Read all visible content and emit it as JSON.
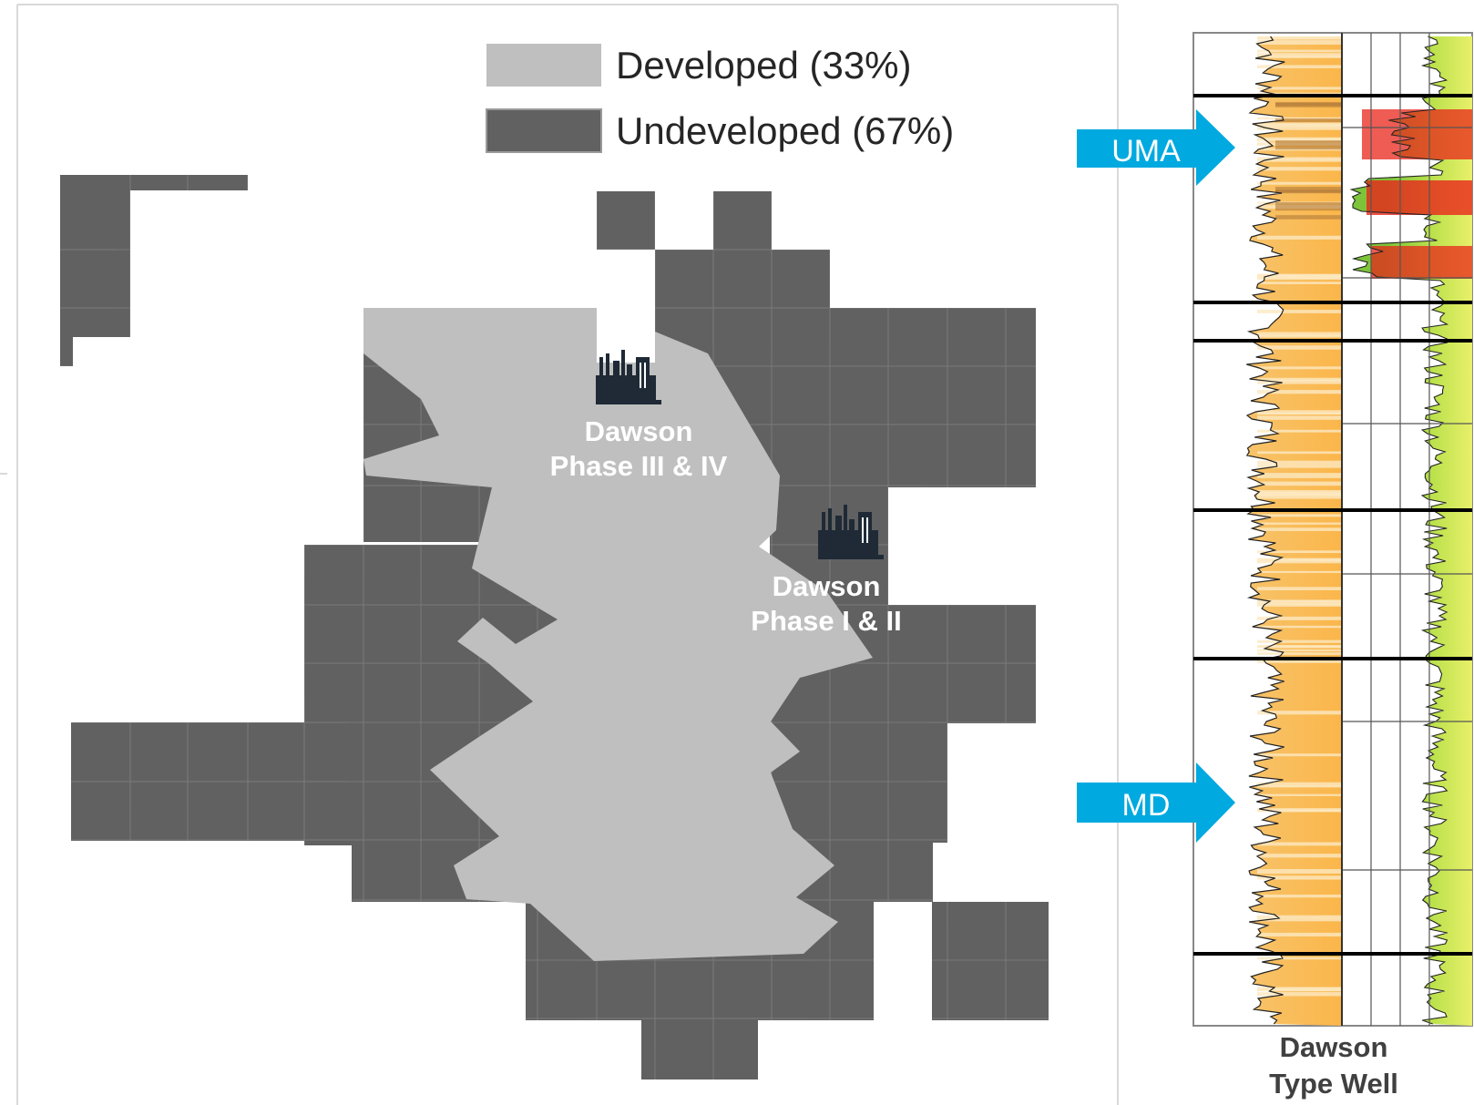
{
  "legend": {
    "developed": {
      "label": "Developed (33%)",
      "color": "#bfbfbf"
    },
    "undeveloped": {
      "label": "Undeveloped (67%)",
      "color": "#616161"
    }
  },
  "plants": [
    {
      "icon": "refinery-icon",
      "line1": "Dawson",
      "line2": "Phase III & IV"
    },
    {
      "icon": "refinery-icon",
      "line1": "Dawson",
      "line2": "Phase I & II"
    }
  ],
  "type_well": {
    "caption_line1": "Dawson",
    "caption_line2": "Type Well",
    "markers": [
      {
        "label": "UMA",
        "color": "#00a9e0"
      },
      {
        "label": "MD",
        "color": "#00a9e0"
      }
    ]
  }
}
